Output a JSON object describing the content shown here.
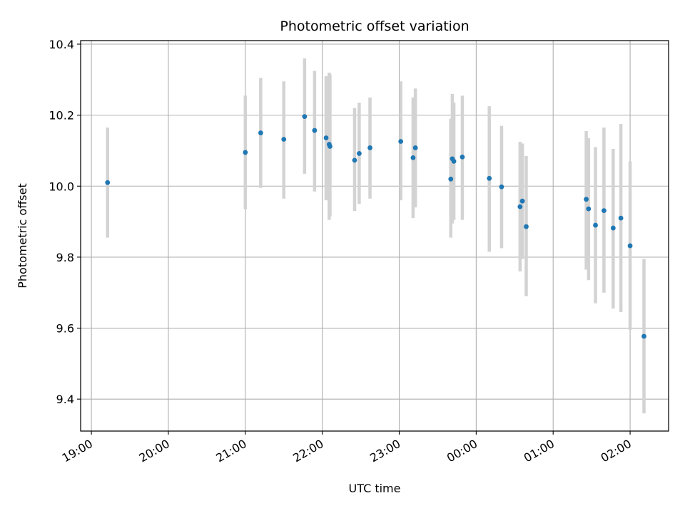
{
  "chart_data": {
    "type": "scatter",
    "title": "Photometric offset variation",
    "xlabel": "UTC time",
    "ylabel": "Photometric offset",
    "x_unit": "hours since 19:00 UTC",
    "xlim": [
      -0.14,
      7.5
    ],
    "ylim": [
      9.31,
      10.41
    ],
    "grid": true,
    "x_ticks": [
      {
        "value": 0,
        "label": "19:00"
      },
      {
        "value": 1,
        "label": "20:00"
      },
      {
        "value": 2,
        "label": "21:00"
      },
      {
        "value": 3,
        "label": "22:00"
      },
      {
        "value": 4,
        "label": "23:00"
      },
      {
        "value": 5,
        "label": "00:00"
      },
      {
        "value": 6,
        "label": "01:00"
      },
      {
        "value": 7,
        "label": "02:00"
      }
    ],
    "y_ticks": [
      {
        "value": 9.4,
        "label": "9.4"
      },
      {
        "value": 9.6,
        "label": "9.6"
      },
      {
        "value": 9.8,
        "label": "9.8"
      },
      {
        "value": 10.0,
        "label": "10.0"
      },
      {
        "value": 10.2,
        "label": "10.2"
      },
      {
        "value": 10.4,
        "label": "10.4"
      }
    ],
    "colors": {
      "point": "#1f77b4",
      "errorbar": "#d3d3d3",
      "grid": "#b0b0b0",
      "axes": "#000000"
    },
    "series": [
      {
        "points": [
          {
            "x": 0.21,
            "y": 10.01,
            "lo": 9.855,
            "hi": 10.165
          },
          {
            "x": 2.0,
            "y": 10.095,
            "lo": 9.935,
            "hi": 10.255
          },
          {
            "x": 2.2,
            "y": 10.15,
            "lo": 9.995,
            "hi": 10.305
          },
          {
            "x": 2.5,
            "y": 10.132,
            "lo": 9.965,
            "hi": 10.295
          },
          {
            "x": 2.77,
            "y": 10.196,
            "lo": 10.035,
            "hi": 10.36
          },
          {
            "x": 2.9,
            "y": 10.157,
            "lo": 9.985,
            "hi": 10.325
          },
          {
            "x": 3.05,
            "y": 10.136,
            "lo": 9.96,
            "hi": 10.31
          },
          {
            "x": 3.09,
            "y": 10.118,
            "lo": 9.905,
            "hi": 10.32
          },
          {
            "x": 3.1,
            "y": 10.112,
            "lo": 9.915,
            "hi": 10.315
          },
          {
            "x": 3.42,
            "y": 10.073,
            "lo": 9.93,
            "hi": 10.22
          },
          {
            "x": 3.48,
            "y": 10.092,
            "lo": 9.95,
            "hi": 10.235
          },
          {
            "x": 3.62,
            "y": 10.108,
            "lo": 9.965,
            "hi": 10.25
          },
          {
            "x": 4.02,
            "y": 10.126,
            "lo": 9.96,
            "hi": 10.295
          },
          {
            "x": 4.18,
            "y": 10.08,
            "lo": 9.91,
            "hi": 10.25
          },
          {
            "x": 4.21,
            "y": 10.108,
            "lo": 9.94,
            "hi": 10.275
          },
          {
            "x": 4.67,
            "y": 10.02,
            "lo": 9.855,
            "hi": 10.19
          },
          {
            "x": 4.69,
            "y": 10.077,
            "lo": 9.895,
            "hi": 10.26
          },
          {
            "x": 4.71,
            "y": 10.07,
            "lo": 9.905,
            "hi": 10.235
          },
          {
            "x": 4.82,
            "y": 10.082,
            "lo": 9.905,
            "hi": 10.255
          },
          {
            "x": 5.17,
            "y": 10.022,
            "lo": 9.815,
            "hi": 10.225
          },
          {
            "x": 5.33,
            "y": 9.998,
            "lo": 9.825,
            "hi": 10.17
          },
          {
            "x": 5.57,
            "y": 9.942,
            "lo": 9.76,
            "hi": 10.125
          },
          {
            "x": 5.6,
            "y": 9.958,
            "lo": 9.795,
            "hi": 10.12
          },
          {
            "x": 5.65,
            "y": 9.886,
            "lo": 9.69,
            "hi": 10.085
          },
          {
            "x": 6.43,
            "y": 9.963,
            "lo": 9.765,
            "hi": 10.155
          },
          {
            "x": 6.46,
            "y": 9.936,
            "lo": 9.735,
            "hi": 10.135
          },
          {
            "x": 6.55,
            "y": 9.89,
            "lo": 9.67,
            "hi": 10.11
          },
          {
            "x": 6.66,
            "y": 9.931,
            "lo": 9.7,
            "hi": 10.165
          },
          {
            "x": 6.78,
            "y": 9.882,
            "lo": 9.655,
            "hi": 10.105
          },
          {
            "x": 6.88,
            "y": 9.91,
            "lo": 9.645,
            "hi": 10.175
          },
          {
            "x": 7.0,
            "y": 9.832,
            "lo": 9.595,
            "hi": 10.07
          },
          {
            "x": 7.18,
            "y": 9.577,
            "lo": 9.36,
            "hi": 9.795
          }
        ]
      }
    ]
  }
}
